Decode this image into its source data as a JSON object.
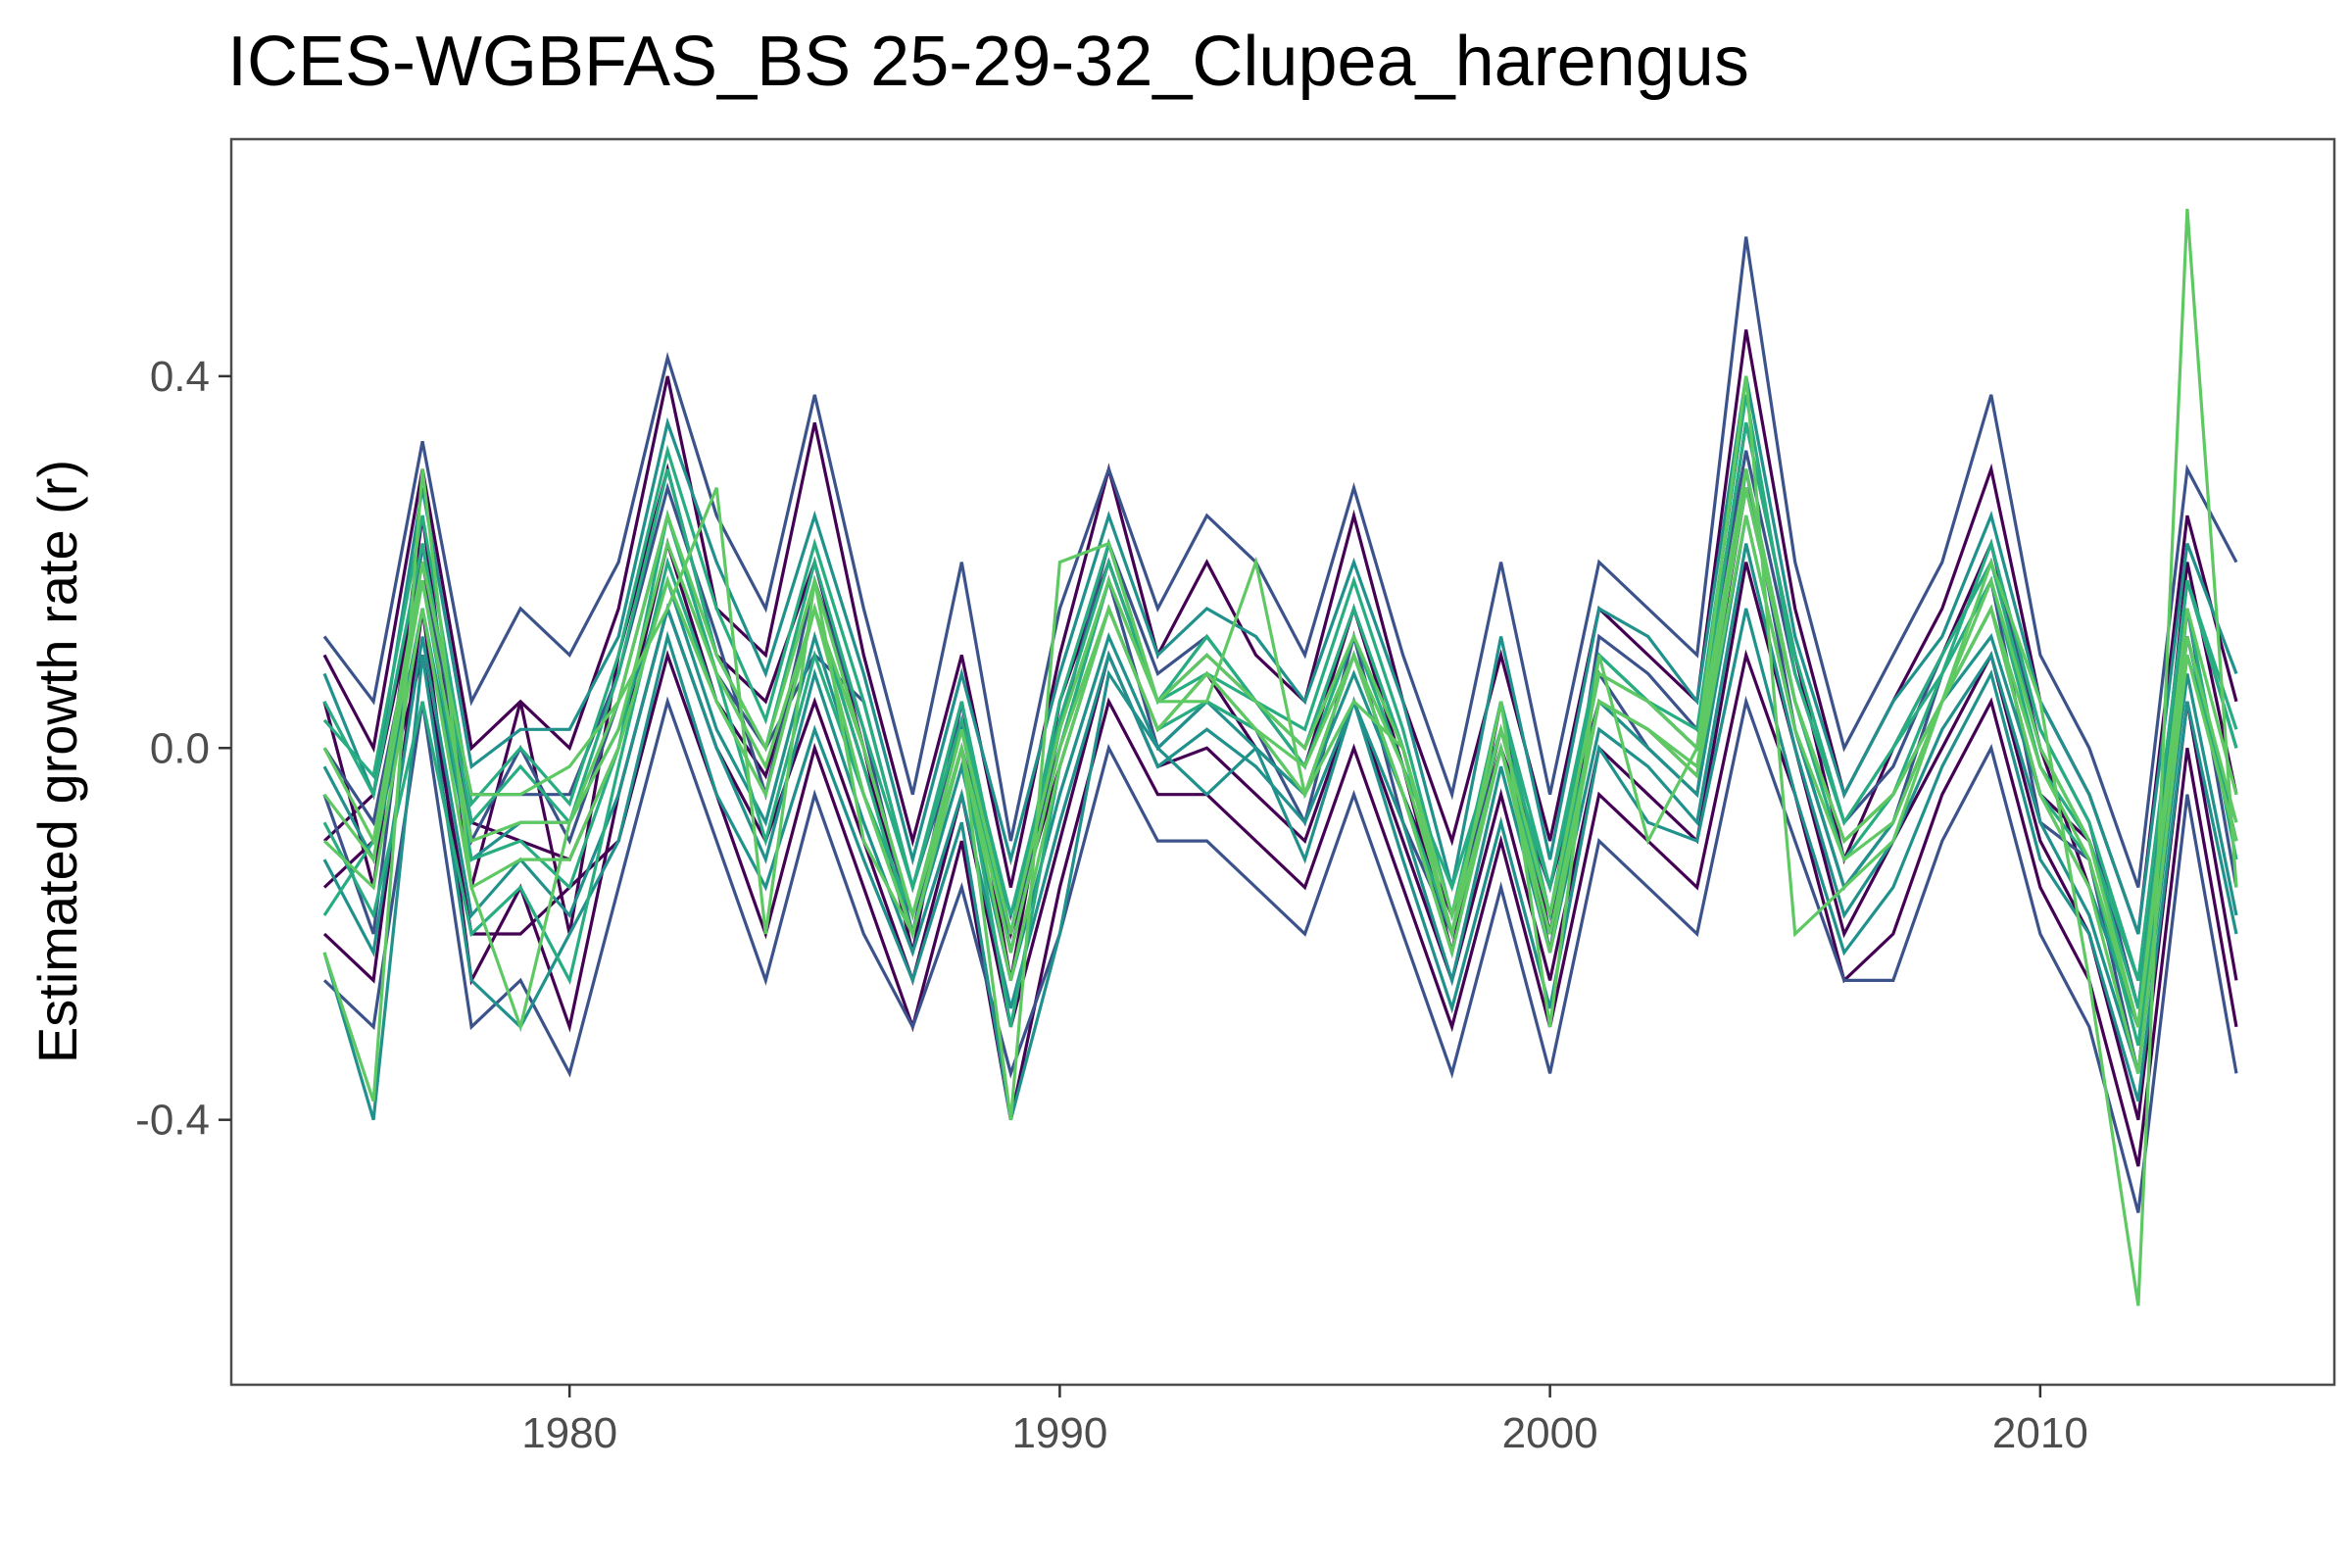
{
  "chart_data": {
    "type": "line",
    "title": "ICES-WGBFAS_BS 25-29-32_Clupea_harengus",
    "xlabel": "",
    "ylabel": "Estimated growth rate (r)",
    "xlim": [
      1973.1,
      2016
    ],
    "ylim": [
      -0.685,
      0.655
    ],
    "x_ticks": [
      1980,
      1990,
      2000,
      2010
    ],
    "y_ticks": [
      -0.4,
      0.0,
      0.4
    ],
    "x_tick_labels": [
      "1980",
      "1990",
      "2000",
      "2010"
    ],
    "y_tick_labels": [
      "-0.4",
      "0.0",
      "0.4"
    ],
    "grid": false,
    "legend": "none",
    "colormap": [
      "#440154",
      "#3b528b",
      "#21918c",
      "#27ad81",
      "#5ec962"
    ],
    "x": [
      1975,
      1976,
      1977,
      1978,
      1979,
      1980,
      1981,
      1982,
      1983,
      1984,
      1985,
      1986,
      1987,
      1988,
      1989,
      1990,
      1991,
      1992,
      1993,
      1994,
      1995,
      1996,
      1997,
      1998,
      1999,
      2000,
      2001,
      2002,
      2003,
      2004,
      2005,
      2006,
      2007,
      2008,
      2009,
      2010,
      2011,
      2012,
      2013,
      2014
    ],
    "series": [
      {
        "values": [
          -0.1,
          -0.05,
          0.2,
          -0.08,
          -0.1,
          -0.12,
          0.0,
          0.22,
          0.05,
          -0.03,
          0.15,
          -0.02,
          -0.18,
          0.0,
          -0.2,
          -0.02,
          0.15,
          0.02,
          0.08,
          0.0,
          -0.05,
          0.1,
          -0.05,
          -0.18,
          0.0,
          -0.15,
          0.05,
          0.02,
          -0.03,
          0.28,
          0.05,
          -0.1,
          -0.05,
          0.05,
          0.15,
          -0.05,
          -0.1,
          -0.25,
          0.12,
          -0.1
        ]
      },
      {
        "values": [
          0.05,
          -0.15,
          0.25,
          -0.15,
          0.05,
          -0.2,
          0.1,
          0.3,
          0.1,
          0.05,
          0.2,
          0.0,
          -0.22,
          0.05,
          -0.25,
          0.05,
          0.2,
          0.05,
          0.1,
          0.05,
          -0.02,
          0.15,
          -0.02,
          -0.22,
          0.05,
          -0.2,
          0.1,
          0.05,
          0.0,
          0.35,
          0.1,
          -0.12,
          0.0,
          0.1,
          0.22,
          0.0,
          -0.15,
          -0.3,
          0.2,
          -0.05
        ]
      },
      {
        "values": [
          -0.2,
          -0.25,
          0.15,
          -0.25,
          -0.15,
          -0.3,
          -0.05,
          0.15,
          0.0,
          -0.1,
          0.05,
          -0.1,
          -0.25,
          -0.05,
          -0.3,
          -0.1,
          0.1,
          -0.02,
          0.0,
          -0.05,
          -0.1,
          0.05,
          -0.1,
          -0.25,
          -0.05,
          -0.25,
          0.0,
          -0.05,
          -0.1,
          0.2,
          0.0,
          -0.2,
          -0.1,
          0.0,
          0.1,
          -0.1,
          -0.2,
          -0.4,
          0.05,
          -0.25
        ]
      },
      {
        "values": [
          0.1,
          0.0,
          0.3,
          0.0,
          0.05,
          0.0,
          0.15,
          0.4,
          0.15,
          0.1,
          0.35,
          0.1,
          -0.1,
          0.1,
          -0.15,
          0.1,
          0.3,
          0.1,
          0.2,
          0.1,
          0.05,
          0.25,
          0.05,
          -0.1,
          0.1,
          -0.1,
          0.15,
          0.1,
          0.05,
          0.45,
          0.15,
          -0.05,
          0.05,
          0.15,
          0.3,
          0.05,
          -0.05,
          -0.2,
          0.25,
          0.05
        ]
      },
      {
        "values": [
          -0.15,
          -0.1,
          0.1,
          -0.2,
          -0.2,
          -0.15,
          -0.1,
          0.1,
          -0.05,
          -0.2,
          0.0,
          -0.15,
          -0.3,
          -0.1,
          -0.4,
          -0.15,
          0.05,
          -0.05,
          -0.05,
          -0.1,
          -0.15,
          0.0,
          -0.15,
          -0.3,
          -0.1,
          -0.3,
          -0.05,
          -0.1,
          -0.15,
          0.1,
          -0.05,
          -0.25,
          -0.2,
          -0.05,
          0.05,
          -0.15,
          -0.25,
          -0.45,
          0.0,
          -0.3
        ]
      },
      {
        "values": [
          -0.05,
          -0.2,
          0.22,
          -0.1,
          0.0,
          -0.1,
          0.05,
          0.25,
          0.08,
          0.0,
          0.1,
          0.05,
          -0.15,
          0.02,
          -0.18,
          0.0,
          0.18,
          0.0,
          0.05,
          0.02,
          -0.08,
          0.12,
          -0.08,
          -0.2,
          0.02,
          -0.18,
          0.08,
          0.0,
          -0.05,
          0.3,
          0.02,
          -0.15,
          -0.08,
          0.08,
          0.18,
          -0.08,
          -0.12,
          -0.35,
          0.15,
          -0.15
        ]
      },
      {
        "values": [
          0.0,
          -0.08,
          0.18,
          -0.05,
          -0.05,
          -0.05,
          0.08,
          0.28,
          0.12,
          -0.05,
          0.18,
          0.02,
          -0.2,
          0.05,
          -0.22,
          0.02,
          0.22,
          0.08,
          0.12,
          0.05,
          0.0,
          0.15,
          0.0,
          -0.2,
          0.05,
          -0.22,
          0.12,
          0.08,
          0.02,
          0.32,
          0.08,
          -0.08,
          -0.02,
          0.1,
          0.2,
          0.02,
          -0.08,
          -0.28,
          0.18,
          0.0
        ]
      },
      {
        "values": [
          -0.25,
          -0.3,
          0.05,
          -0.3,
          -0.25,
          -0.35,
          -0.15,
          0.05,
          -0.1,
          -0.25,
          -0.05,
          -0.2,
          -0.3,
          -0.15,
          -0.35,
          -0.2,
          0.0,
          -0.1,
          -0.1,
          -0.15,
          -0.2,
          -0.05,
          -0.2,
          -0.35,
          -0.15,
          -0.35,
          -0.1,
          -0.15,
          -0.2,
          0.05,
          -0.1,
          -0.25,
          -0.25,
          -0.1,
          0.0,
          -0.2,
          -0.3,
          -0.5,
          -0.05,
          -0.35
        ]
      },
      {
        "values": [
          0.12,
          0.05,
          0.33,
          0.05,
          0.15,
          0.1,
          0.2,
          0.42,
          0.25,
          0.15,
          0.38,
          0.15,
          -0.05,
          0.2,
          -0.1,
          0.15,
          0.3,
          0.15,
          0.25,
          0.2,
          0.1,
          0.28,
          0.1,
          -0.05,
          0.2,
          -0.05,
          0.2,
          0.15,
          0.1,
          0.55,
          0.2,
          0.0,
          0.1,
          0.2,
          0.38,
          0.1,
          0.0,
          -0.15,
          0.3,
          0.2
        ]
      },
      {
        "values": [
          -0.22,
          -0.4,
          0.1,
          -0.25,
          -0.3,
          -0.2,
          -0.1,
          0.12,
          -0.05,
          -0.15,
          0.02,
          -0.12,
          -0.25,
          -0.08,
          -0.4,
          -0.2,
          0.08,
          0.0,
          -0.05,
          0.0,
          -0.12,
          0.05,
          -0.12,
          -0.28,
          -0.08,
          -0.28,
          0.0,
          -0.08,
          -0.1,
          0.15,
          -0.05,
          -0.22,
          -0.15,
          -0.02,
          0.08,
          -0.12,
          -0.2,
          -0.38,
          0.05,
          -0.2
        ]
      },
      {
        "values": [
          -0.02,
          -0.12,
          0.15,
          -0.12,
          -0.08,
          -0.08,
          0.02,
          0.18,
          0.02,
          -0.08,
          0.12,
          -0.05,
          -0.2,
          -0.02,
          -0.25,
          -0.05,
          0.12,
          0.0,
          0.05,
          0.0,
          -0.05,
          0.08,
          -0.05,
          -0.22,
          0.0,
          -0.2,
          0.05,
          0.0,
          -0.05,
          0.25,
          0.02,
          -0.15,
          -0.08,
          0.05,
          0.12,
          -0.05,
          -0.15,
          -0.3,
          0.1,
          -0.08
        ]
      },
      {
        "values": [
          0.08,
          -0.05,
          0.28,
          -0.02,
          0.02,
          0.02,
          0.12,
          0.35,
          0.2,
          0.08,
          0.25,
          0.08,
          -0.12,
          0.08,
          -0.12,
          0.08,
          0.25,
          0.1,
          0.15,
          0.12,
          0.05,
          0.2,
          0.05,
          -0.15,
          0.12,
          -0.12,
          0.15,
          0.12,
          0.05,
          0.4,
          0.12,
          -0.05,
          0.05,
          0.12,
          0.25,
          0.05,
          -0.05,
          -0.2,
          0.22,
          0.08
        ]
      },
      {
        "values": [
          -0.12,
          -0.22,
          0.12,
          -0.18,
          -0.12,
          -0.18,
          -0.05,
          0.15,
          0.0,
          -0.12,
          0.08,
          -0.08,
          -0.22,
          -0.05,
          -0.28,
          -0.08,
          0.1,
          -0.02,
          0.02,
          -0.02,
          -0.08,
          0.05,
          -0.08,
          -0.25,
          -0.02,
          -0.22,
          0.02,
          -0.02,
          -0.08,
          0.22,
          0.0,
          -0.18,
          -0.1,
          0.02,
          0.1,
          -0.08,
          -0.18,
          -0.35,
          0.08,
          -0.18
        ]
      },
      {
        "values": [
          0.03,
          -0.03,
          0.25,
          -0.06,
          0.0,
          -0.06,
          0.1,
          0.32,
          0.15,
          0.03,
          0.22,
          0.05,
          -0.15,
          0.03,
          -0.18,
          0.03,
          0.2,
          0.05,
          0.12,
          0.05,
          0.02,
          0.18,
          0.02,
          -0.18,
          0.05,
          -0.15,
          0.1,
          0.05,
          0.02,
          0.38,
          0.08,
          -0.08,
          0.0,
          0.08,
          0.22,
          0.02,
          -0.08,
          -0.25,
          0.18,
          0.02
        ]
      },
      {
        "values": [
          -0.08,
          -0.18,
          0.05,
          -0.2,
          -0.15,
          -0.25,
          -0.02,
          0.2,
          0.05,
          -0.05,
          0.15,
          -0.02,
          -0.2,
          0.0,
          -0.3,
          -0.02,
          0.15,
          0.02,
          0.05,
          0.02,
          -0.05,
          0.1,
          -0.05,
          -0.2,
          0.0,
          -0.18,
          0.05,
          0.02,
          -0.02,
          0.28,
          0.05,
          -0.12,
          -0.05,
          0.05,
          0.15,
          -0.05,
          -0.12,
          -0.32,
          0.12,
          -0.1
        ]
      },
      {
        "values": [
          -0.18,
          -0.1,
          0.18,
          -0.12,
          -0.1,
          -0.15,
          0.0,
          0.25,
          0.08,
          -0.1,
          0.1,
          -0.05,
          -0.18,
          0.02,
          -0.22,
          0.0,
          0.18,
          0.05,
          0.08,
          0.05,
          -0.02,
          0.12,
          -0.02,
          -0.15,
          0.02,
          -0.15,
          0.08,
          0.05,
          0.0,
          0.3,
          0.05,
          -0.1,
          -0.05,
          0.08,
          0.18,
          -0.02,
          -0.1,
          -0.28,
          0.15,
          -0.12
        ]
      },
      {
        "values": [
          0.05,
          -0.05,
          0.22,
          -0.08,
          -0.02,
          -0.08,
          0.08,
          0.3,
          0.1,
          0.0,
          0.2,
          0.02,
          -0.15,
          0.05,
          -0.2,
          0.05,
          0.22,
          0.05,
          0.12,
          0.05,
          0.0,
          0.15,
          0.0,
          -0.18,
          0.05,
          -0.18,
          0.1,
          0.05,
          0.0,
          0.35,
          0.1,
          -0.08,
          0.0,
          0.1,
          0.2,
          0.0,
          -0.1,
          -0.25,
          0.18,
          0.0
        ]
      },
      {
        "values": [
          -0.1,
          -0.15,
          0.15,
          -0.15,
          -0.12,
          -0.12,
          0.0,
          0.18,
          0.05,
          -0.05,
          0.15,
          -0.05,
          -0.2,
          0.0,
          -0.25,
          -0.02,
          0.15,
          0.02,
          0.08,
          0.02,
          -0.05,
          0.1,
          -0.05,
          -0.22,
          0.0,
          -0.22,
          0.05,
          0.02,
          -0.03,
          0.25,
          0.02,
          -0.12,
          -0.08,
          0.05,
          0.15,
          -0.05,
          -0.15,
          -0.35,
          0.1,
          -0.1
        ]
      },
      {
        "values": [
          0.0,
          -0.1,
          0.2,
          -0.05,
          -0.05,
          -0.02,
          0.05,
          0.25,
          0.1,
          0.0,
          0.18,
          0.0,
          -0.18,
          0.02,
          -0.2,
          0.02,
          0.18,
          0.05,
          0.1,
          0.05,
          0.0,
          0.12,
          0.0,
          -0.18,
          0.02,
          -0.18,
          0.08,
          0.05,
          0.0,
          0.3,
          0.05,
          -0.1,
          -0.05,
          0.05,
          0.18,
          0.0,
          -0.1,
          -0.3,
          0.15,
          -0.05
        ]
      },
      {
        "values": [
          -0.05,
          -0.12,
          0.18,
          -0.1,
          -0.08,
          -0.08,
          0.02,
          0.22,
          0.08,
          -0.02,
          0.15,
          0.0,
          -0.18,
          0.0,
          -0.22,
          0.0,
          0.15,
          0.02,
          0.08,
          0.02,
          -0.02,
          0.1,
          -0.02,
          -0.2,
          0.0,
          -0.2,
          0.05,
          0.02,
          -0.02,
          0.28,
          0.05,
          -0.1,
          -0.05,
          0.05,
          0.15,
          -0.02,
          -0.12,
          -0.3,
          0.12,
          -0.08
        ]
      },
      {
        "values": [
          -0.22,
          -0.38,
          0.3,
          -0.15,
          -0.3,
          -0.08,
          0.05,
          0.15,
          0.28,
          -0.2,
          0.18,
          -0.1,
          -0.2,
          0.0,
          -0.4,
          0.2,
          0.22,
          0.05,
          0.05,
          0.2,
          -0.05,
          0.05,
          0.0,
          -0.2,
          0.05,
          -0.3,
          0.1,
          -0.1,
          0.0,
          0.4,
          -0.2,
          -0.15,
          -0.1,
          0.05,
          0.2,
          0.05,
          -0.25,
          -0.6,
          0.58,
          -0.15
        ]
      }
    ]
  }
}
